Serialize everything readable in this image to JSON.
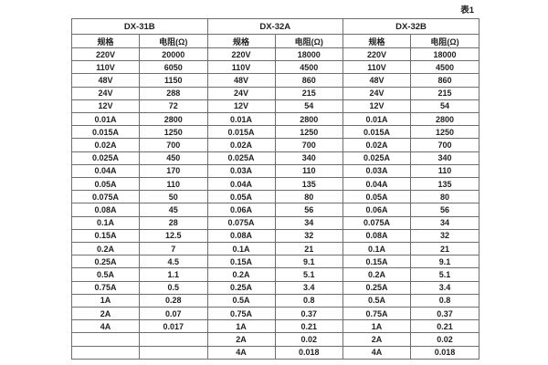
{
  "caption": "表1",
  "table": {
    "groups": [
      {
        "name": "DX-31B",
        "spec_header": "规格",
        "res_header": "电阻(Ω)"
      },
      {
        "name": "DX-32A",
        "spec_header": "规格",
        "res_header": "电阻(Ω)"
      },
      {
        "name": "DX-32B",
        "spec_header": "规格",
        "res_header": "电阻(Ω)"
      }
    ],
    "rows": [
      [
        "220V",
        "20000",
        "220V",
        "18000",
        "220V",
        "18000"
      ],
      [
        "110V",
        "6050",
        "110V",
        "4500",
        "110V",
        "4500"
      ],
      [
        "48V",
        "1150",
        "48V",
        "860",
        "48V",
        "860"
      ],
      [
        "24V",
        "288",
        "24V",
        "215",
        "24V",
        "215"
      ],
      [
        "12V",
        "72",
        "12V",
        "54",
        "12V",
        "54"
      ],
      [
        "0.01A",
        "2800",
        "0.01A",
        "2800",
        "0.01A",
        "2800"
      ],
      [
        "0.015A",
        "1250",
        "0.015A",
        "1250",
        "0.015A",
        "1250"
      ],
      [
        "0.02A",
        "700",
        "0.02A",
        "700",
        "0.02A",
        "700"
      ],
      [
        "0.025A",
        "450",
        "0.025A",
        "340",
        "0.025A",
        "340"
      ],
      [
        "0.04A",
        "170",
        "0.03A",
        "110",
        "0.03A",
        "110"
      ],
      [
        "0.05A",
        "110",
        "0.04A",
        "135",
        "0.04A",
        "135"
      ],
      [
        "0.075A",
        "50",
        "0.05A",
        "80",
        "0.05A",
        "80"
      ],
      [
        "0.08A",
        "45",
        "0.06A",
        "56",
        "0.06A",
        "56"
      ],
      [
        "0.1A",
        "28",
        "0.075A",
        "34",
        "0.075A",
        "34"
      ],
      [
        "0.15A",
        "12.5",
        "0.08A",
        "32",
        "0.08A",
        "32"
      ],
      [
        "0.2A",
        "7",
        "0.1A",
        "21",
        "0.1A",
        "21"
      ],
      [
        "0.25A",
        "4.5",
        "0.15A",
        "9.1",
        "0.15A",
        "9.1"
      ],
      [
        "0.5A",
        "1.1",
        "0.2A",
        "5.1",
        "0.2A",
        "5.1"
      ],
      [
        "0.75A",
        "0.5",
        "0.25A",
        "3.4",
        "0.25A",
        "3.4"
      ],
      [
        "1A",
        "0.28",
        "0.5A",
        "0.8",
        "0.5A",
        "0.8"
      ],
      [
        "2A",
        "0.07",
        "0.75A",
        "0.37",
        "0.75A",
        "0.37"
      ],
      [
        "4A",
        "0.017",
        "1A",
        "0.21",
        "1A",
        "0.21"
      ],
      [
        "",
        "",
        "2A",
        "0.02",
        "2A",
        "0.02"
      ],
      [
        "",
        "",
        "4A",
        "0.018",
        "4A",
        "0.018"
      ]
    ]
  }
}
